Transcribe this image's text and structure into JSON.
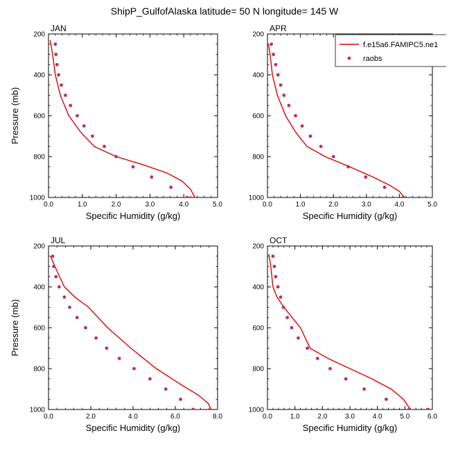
{
  "figure": {
    "title": "ShipP_GulfofAlaska  latitude= 50 N longitude= 145 W"
  },
  "legend": {
    "entries": [
      {
        "label": "f.e15a6.FAMIPC5.ne1",
        "kind": "line",
        "color": "#dd0000"
      },
      {
        "label": "raobs",
        "kind": "marker",
        "color": "#b8306a"
      }
    ]
  },
  "colors": {
    "model": "#dd0000",
    "obs": "#b8306a"
  },
  "chart_data": [
    {
      "type": "line",
      "panel_label": "JAN",
      "xlabel": "Specific Humidity (g/kg)",
      "ylabel": "Pressure (mb)",
      "xlim": [
        0,
        5
      ],
      "ylim": [
        1000,
        200
      ],
      "xticks": [
        "0.0",
        "1.0",
        "2.0",
        "3.0",
        "4.0",
        "5.0"
      ],
      "yticks": [
        "200",
        "400",
        "600",
        "800",
        "1000"
      ],
      "series": [
        {
          "name": "f.e15a6.FAMIPC5.ne1",
          "kind": "line",
          "x": [
            0.05,
            0.12,
            0.2,
            0.35,
            0.6,
            0.95,
            1.35,
            2.0,
            2.8,
            3.5,
            3.95,
            4.2,
            4.33
          ],
          "y": [
            230,
            300,
            400,
            500,
            600,
            680,
            750,
            800,
            840,
            880,
            920,
            960,
            1000
          ]
        },
        {
          "name": "raobs",
          "kind": "scatter",
          "x": [
            0.2,
            0.22,
            0.25,
            0.3,
            0.38,
            0.5,
            0.65,
            0.85,
            1.05,
            1.3,
            1.65,
            2.0,
            2.5,
            3.05,
            3.62,
            4.1
          ],
          "y": [
            250,
            300,
            350,
            400,
            450,
            500,
            550,
            600,
            650,
            700,
            750,
            800,
            850,
            900,
            950,
            1000
          ]
        }
      ]
    },
    {
      "type": "line",
      "panel_label": "APR",
      "xlabel": "Specific Humidity (g/kg)",
      "ylabel": "",
      "xlim": [
        0,
        5
      ],
      "ylim": [
        1000,
        200
      ],
      "xticks": [
        "0.0",
        "1.0",
        "2.0",
        "3.0",
        "4.0",
        "5.0"
      ],
      "yticks": [
        "200",
        "400",
        "600",
        "800",
        "1000"
      ],
      "series": [
        {
          "name": "f.e15a6.FAMIPC5.ne1",
          "kind": "line",
          "x": [
            0.03,
            0.08,
            0.15,
            0.3,
            0.55,
            0.85,
            1.2,
            1.75,
            2.5,
            3.2,
            3.7,
            4.0,
            4.15
          ],
          "y": [
            250,
            300,
            400,
            500,
            600,
            680,
            750,
            800,
            850,
            900,
            940,
            970,
            1000
          ]
        },
        {
          "name": "raobs",
          "kind": "scatter",
          "x": [
            0.12,
            0.18,
            0.25,
            0.32,
            0.4,
            0.5,
            0.65,
            0.85,
            1.05,
            1.3,
            1.62,
            2.0,
            2.45,
            2.98,
            3.55,
            4.12
          ],
          "y": [
            250,
            300,
            350,
            400,
            450,
            500,
            550,
            600,
            650,
            700,
            750,
            800,
            850,
            900,
            950,
            1000
          ]
        }
      ]
    },
    {
      "type": "line",
      "panel_label": "JUL",
      "xlabel": "Specific Humidity (g/kg)",
      "ylabel": "Pressure (mb)",
      "xlim": [
        0,
        8
      ],
      "ylim": [
        1000,
        200
      ],
      "xticks": [
        "0.0",
        "2.0",
        "4.0",
        "6.0",
        "8.0"
      ],
      "yticks": [
        "200",
        "400",
        "600",
        "800",
        "1000"
      ],
      "series": [
        {
          "name": "f.e15a6.FAMIPC5.ne1",
          "kind": "line",
          "x": [
            0.1,
            0.3,
            0.75,
            1.25,
            1.9,
            2.8,
            3.9,
            5.1,
            6.3,
            7.1,
            7.55,
            7.75
          ],
          "y": [
            250,
            300,
            400,
            450,
            500,
            600,
            700,
            800,
            880,
            930,
            970,
            1010
          ]
        },
        {
          "name": "raobs",
          "kind": "scatter",
          "x": [
            0.2,
            0.25,
            0.35,
            0.5,
            0.75,
            1.0,
            1.35,
            1.75,
            2.25,
            2.75,
            3.35,
            4.05,
            4.8,
            5.55,
            6.25,
            6.85
          ],
          "y": [
            250,
            300,
            350,
            400,
            450,
            500,
            550,
            600,
            650,
            700,
            750,
            800,
            850,
            900,
            950,
            1000
          ]
        }
      ]
    },
    {
      "type": "line",
      "panel_label": "OCT",
      "xlabel": "Specific Humidity (g/kg)",
      "ylabel": "",
      "xlim": [
        0,
        6
      ],
      "ylim": [
        1000,
        200
      ],
      "xticks": [
        "0.0",
        "1.0",
        "2.0",
        "3.0",
        "4.0",
        "5.0",
        "6.0"
      ],
      "yticks": [
        "200",
        "400",
        "600",
        "800",
        "1000"
      ],
      "series": [
        {
          "name": "f.e15a6.FAMIPC5.ne1",
          "kind": "line",
          "x": [
            0.05,
            0.12,
            0.2,
            0.35,
            0.6,
            0.9,
            1.2,
            1.55,
            2.2,
            3.0,
            3.8,
            4.5,
            4.95,
            5.2
          ],
          "y": [
            240,
            300,
            400,
            450,
            500,
            550,
            600,
            700,
            750,
            800,
            850,
            900,
            950,
            1000
          ]
        },
        {
          "name": "raobs",
          "kind": "scatter",
          "x": [
            0.2,
            0.25,
            0.3,
            0.38,
            0.48,
            0.58,
            0.72,
            0.88,
            1.12,
            1.45,
            1.82,
            2.28,
            2.85,
            3.52,
            4.32,
            5.15,
            5.85
          ],
          "y": [
            250,
            300,
            350,
            400,
            450,
            500,
            550,
            600,
            650,
            700,
            750,
            800,
            850,
            900,
            950,
            1000,
            1000
          ]
        }
      ]
    }
  ]
}
